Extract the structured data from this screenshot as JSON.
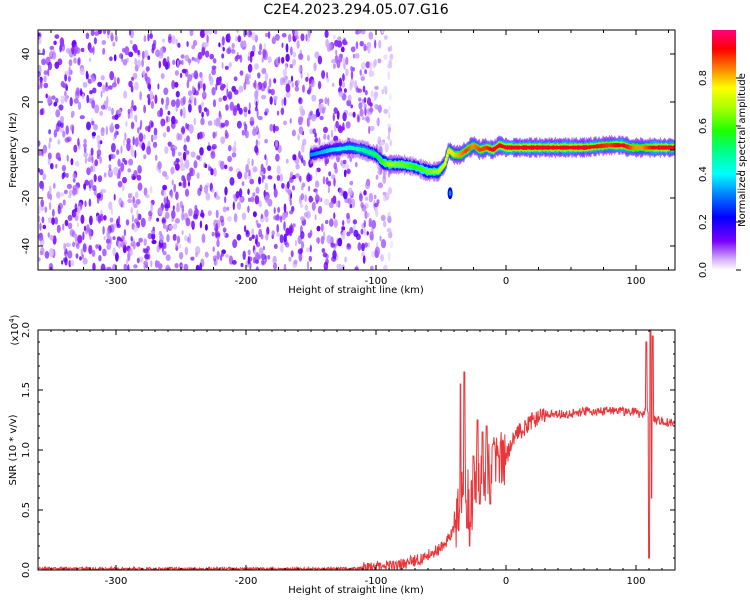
{
  "title": "C2E4.2023.294.05.07.G16",
  "chart_data": [
    {
      "type": "heatmap",
      "xlabel": "Height of straight line (km)",
      "ylabel": "Frequency (Hz)",
      "xlim": [
        -360,
        130
      ],
      "ylim": [
        -50,
        50
      ],
      "x_ticks": [
        -300,
        -200,
        -100,
        0,
        100
      ],
      "y_ticks": [
        -40,
        -20,
        0,
        20,
        40
      ],
      "colorbar": {
        "label": "Normalized spectral amplitude",
        "range": [
          0,
          1
        ],
        "ticks": [
          "0.0",
          "0.2",
          "0.4",
          "0.6",
          "0.8"
        ]
      },
      "noise_region_x": [
        -360,
        -88
      ],
      "detached_blob": {
        "x": -43,
        "y": -18
      },
      "trace": {
        "x": [
          -150,
          -135,
          -120,
          -110,
          -100,
          -95,
          -90,
          -80,
          -70,
          -60,
          -52,
          -47,
          -44,
          -40,
          -35,
          -30,
          -25,
          -20,
          -15,
          -10,
          -5,
          0,
          20,
          40,
          60,
          80,
          90,
          95,
          100,
          105,
          110,
          115,
          120,
          130
        ],
        "freq_hz": [
          -2,
          0,
          1,
          0,
          -2,
          -5,
          -6,
          -6,
          -7,
          -9,
          -9,
          -6,
          0,
          -2,
          -2,
          0,
          2,
          0,
          1,
          0,
          2,
          1,
          1,
          1,
          1,
          2,
          2,
          1,
          1,
          1,
          1,
          1,
          1,
          1
        ],
        "amplitude": [
          0.35,
          0.4,
          0.45,
          0.5,
          0.55,
          0.6,
          0.7,
          0.65,
          0.6,
          0.65,
          0.7,
          0.75,
          0.8,
          0.8,
          0.85,
          0.9,
          0.85,
          0.9,
          0.9,
          0.95,
          0.95,
          0.95,
          0.95,
          0.95,
          0.95,
          0.9,
          0.95,
          0.9,
          0.85,
          0.85,
          0.9,
          0.95,
          0.95,
          0.95
        ]
      }
    },
    {
      "type": "line",
      "xlabel": "Height of straight line (km)",
      "ylabel": "SNR (10 * v/v)",
      "y_multiplier": "(x10",
      "y_multiplier_exp": "4",
      "y_multiplier_close": ")",
      "xlim": [
        -360,
        130
      ],
      "ylim": [
        0,
        2.0
      ],
      "x_ticks": [
        -300,
        -200,
        -100,
        0,
        100
      ],
      "y_ticks": [
        "0.0",
        "0.5",
        "1.0",
        "1.5",
        "2.0"
      ],
      "color": "#e8373a",
      "series": [
        {
          "x": [
            -360,
            -300,
            -200,
            -120,
            -100,
            -80,
            -70,
            -60,
            -50,
            -45,
            -40,
            -35,
            -32,
            -30,
            -28,
            -25,
            -22,
            -20,
            -15,
            -10,
            -5,
            0,
            5,
            10,
            15,
            20,
            30,
            40,
            50,
            60,
            70,
            80,
            90,
            100,
            105,
            108,
            110,
            112,
            115,
            120,
            130
          ],
          "y": [
            0.01,
            0.01,
            0.01,
            0.01,
            0.02,
            0.05,
            0.08,
            0.12,
            0.18,
            0.25,
            0.35,
            0.5,
            0.9,
            0.7,
            0.45,
            0.6,
            0.8,
            0.7,
            0.85,
            0.85,
            0.9,
            0.95,
            1.05,
            1.15,
            1.2,
            1.25,
            1.3,
            1.3,
            1.3,
            1.32,
            1.32,
            1.33,
            1.32,
            1.32,
            1.28,
            1.35,
            1.3,
            1.25,
            1.25,
            1.24,
            1.22
          ]
        }
      ],
      "spikes": [
        {
          "x": -35,
          "y": 1.55
        },
        {
          "x": -32,
          "y": 1.65
        },
        {
          "x": -30,
          "y": 0.35
        },
        {
          "x": -28,
          "y": 0.2
        },
        {
          "x": -25,
          "y": 0.95
        },
        {
          "x": -22,
          "y": 1.25
        },
        {
          "x": -20,
          "y": 0.55
        },
        {
          "x": -18,
          "y": 1.15
        },
        {
          "x": -15,
          "y": 1.2
        },
        {
          "x": -12,
          "y": 0.55
        },
        {
          "x": -10,
          "y": 1.05
        },
        {
          "x": 108,
          "y": 1.9
        },
        {
          "x": 110,
          "y": 0.1
        },
        {
          "x": 111,
          "y": 2.0
        },
        {
          "x": 112,
          "y": 0.6
        },
        {
          "x": 113,
          "y": 1.95
        }
      ]
    }
  ]
}
